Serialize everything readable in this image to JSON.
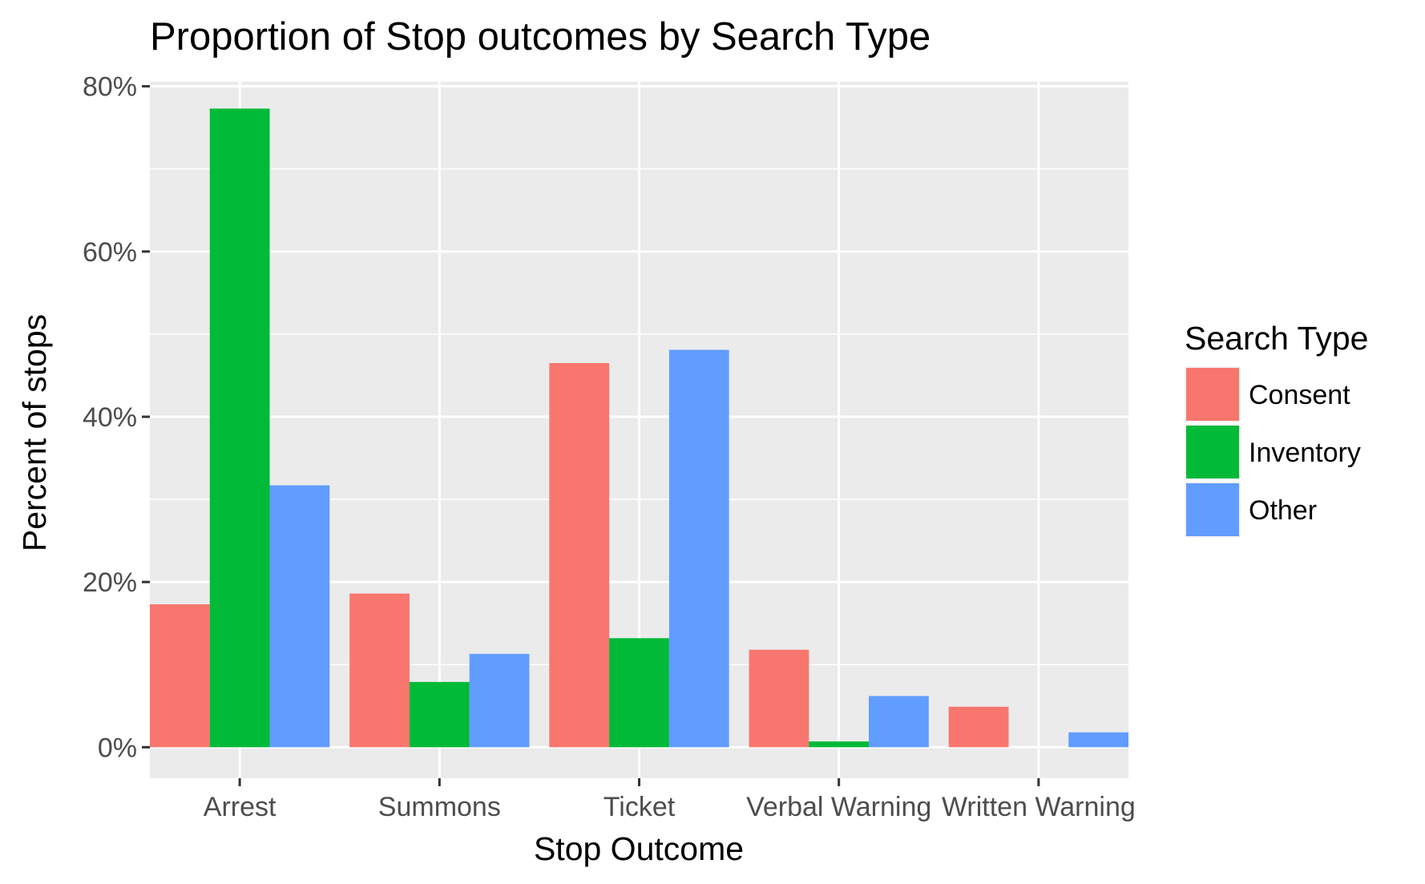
{
  "chart_data": {
    "type": "bar",
    "title": "Proportion of Stop outcomes by Search Type",
    "xlabel": "Stop Outcome",
    "ylabel": "Percent of stops",
    "categories": [
      "Arrest",
      "Summons",
      "Ticket",
      "Verbal Warning",
      "Written Warning"
    ],
    "series": [
      {
        "name": "Consent",
        "color": "#F8766D",
        "values": [
          17.3,
          18.6,
          46.5,
          11.8,
          4.9
        ]
      },
      {
        "name": "Inventory",
        "color": "#00BA38",
        "values": [
          77.3,
          7.9,
          13.2,
          0.7,
          0.0
        ]
      },
      {
        "name": "Other",
        "color": "#619CFF",
        "values": [
          31.7,
          11.3,
          48.1,
          6.2,
          1.8
        ]
      }
    ],
    "ylim": [
      -3.75,
      80.55
    ],
    "y_ticks": [
      0,
      20,
      40,
      60,
      80
    ],
    "y_tick_labels": [
      "0%",
      "20%",
      "40%",
      "60%",
      "80%"
    ],
    "legend": {
      "title": "Search Type",
      "placement": "right"
    },
    "panel_background": "#EBEBEB",
    "grid": true
  }
}
